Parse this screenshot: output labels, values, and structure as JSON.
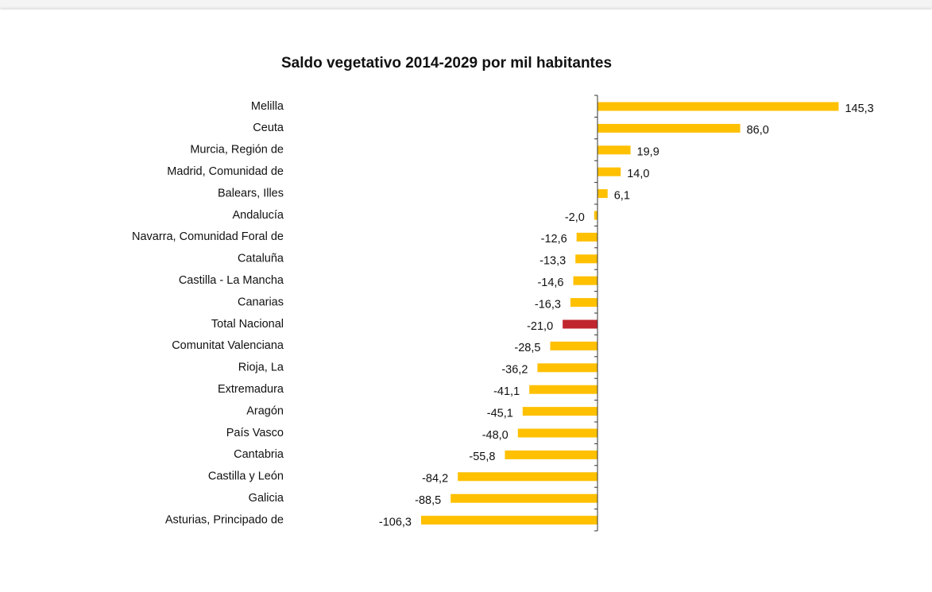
{
  "chart_data": {
    "type": "barh",
    "title": "Saldo vegetativo 2014-2029 por mil habitantes",
    "categories": [
      "Melilla",
      "Ceuta",
      "Murcia, Región de",
      "Madrid, Comunidad de",
      "Balears, Illes",
      "Andalucía",
      "Navarra, Comunidad Foral de",
      "Cataluña",
      "Castilla - La Mancha",
      "Canarias",
      "Total Nacional",
      "Comunitat Valenciana",
      "Rioja, La",
      "Extremadura",
      "Aragón",
      "País Vasco",
      "Cantabria",
      "Castilla y León",
      "Galicia",
      "Asturias, Principado de"
    ],
    "values": [
      145.3,
      86.0,
      19.9,
      14.0,
      6.1,
      -2.0,
      -12.6,
      -13.3,
      -14.6,
      -16.3,
      -21.0,
      -28.5,
      -36.2,
      -41.1,
      -45.1,
      -48.0,
      -55.8,
      -84.2,
      -88.5,
      -106.3
    ],
    "value_labels": [
      "145,3",
      "86,0",
      "19,9",
      "14,0",
      "6,1",
      "-2,0",
      "-12,6",
      "-13,3",
      "-14,6",
      "-16,3",
      "-21,0",
      "-28,5",
      "-36,2",
      "-41,1",
      "-45,1",
      "-48,0",
      "-55,8",
      "-84,2",
      "-88,5",
      "-106,3"
    ],
    "colors": [
      "#ffc000",
      "#ffc000",
      "#ffc000",
      "#ffc000",
      "#ffc000",
      "#ffc000",
      "#ffc000",
      "#ffc000",
      "#ffc000",
      "#ffc000",
      "#c0272d",
      "#ffc000",
      "#ffc000",
      "#ffc000",
      "#ffc000",
      "#ffc000",
      "#ffc000",
      "#ffc000",
      "#ffc000",
      "#ffc000"
    ]
  }
}
